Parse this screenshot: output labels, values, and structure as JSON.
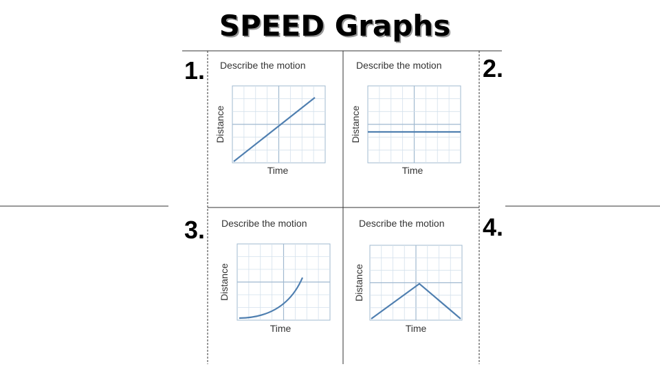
{
  "title": "SPEED Graphs",
  "panels": [
    {
      "number": "1.",
      "prompt": "Describe the motion",
      "x_label": "Time",
      "y_label": "Distance"
    },
    {
      "number": "2.",
      "prompt": "Describe the motion",
      "x_label": "Time",
      "y_label": "Distance"
    },
    {
      "number": "3.",
      "prompt": "Describe the motion",
      "x_label": "Time",
      "y_label": "Distance"
    },
    {
      "number": "4.",
      "prompt": "Describe the motion",
      "x_label": "Time",
      "y_label": "Distance"
    }
  ]
}
